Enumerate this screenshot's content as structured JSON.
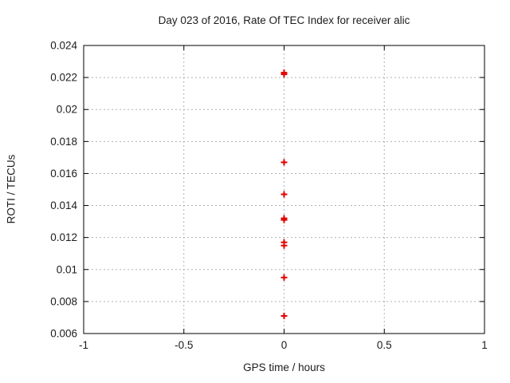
{
  "title": "Day 023 of 2016, Rate Of TEC Index for receiver alic",
  "colors": {
    "background": "#ffffff",
    "border": "#000000",
    "grid": "#b0b0b0",
    "text": "#1c1c1c",
    "marker": "#e00000"
  },
  "chart_data": {
    "type": "scatter",
    "title": "Day 023 of 2016, Rate Of TEC Index for receiver alic",
    "xlabel": "GPS time / hours",
    "ylabel": "ROTI / TECUs",
    "xlim": [
      -1,
      1
    ],
    "ylim": [
      0.006,
      0.024
    ],
    "xticks": {
      "values": [
        -1,
        -0.5,
        0,
        0.5,
        1
      ],
      "labels": [
        "-1",
        "-0.5",
        "0",
        "0.5",
        "1"
      ]
    },
    "yticks": {
      "values": [
        0.006,
        0.008,
        0.01,
        0.012,
        0.014,
        0.016,
        0.018,
        0.02,
        0.022,
        0.024
      ],
      "labels": [
        "0.006",
        "0.008",
        "0.01",
        "0.012",
        "0.014",
        "0.016",
        "0.018",
        "0.02",
        "0.022",
        "0.024"
      ]
    },
    "grid": "dashed",
    "legend_position": "none",
    "series": [
      {
        "name": "ROTI",
        "marker": "plus",
        "color": "#e00000",
        "x": [
          0,
          0,
          0,
          0,
          0,
          0,
          0,
          0,
          0,
          0
        ],
        "y": [
          0.0223,
          0.0222,
          0.0167,
          0.0147,
          0.0132,
          0.0131,
          0.0117,
          0.0115,
          0.0095,
          0.0071
        ]
      }
    ]
  }
}
